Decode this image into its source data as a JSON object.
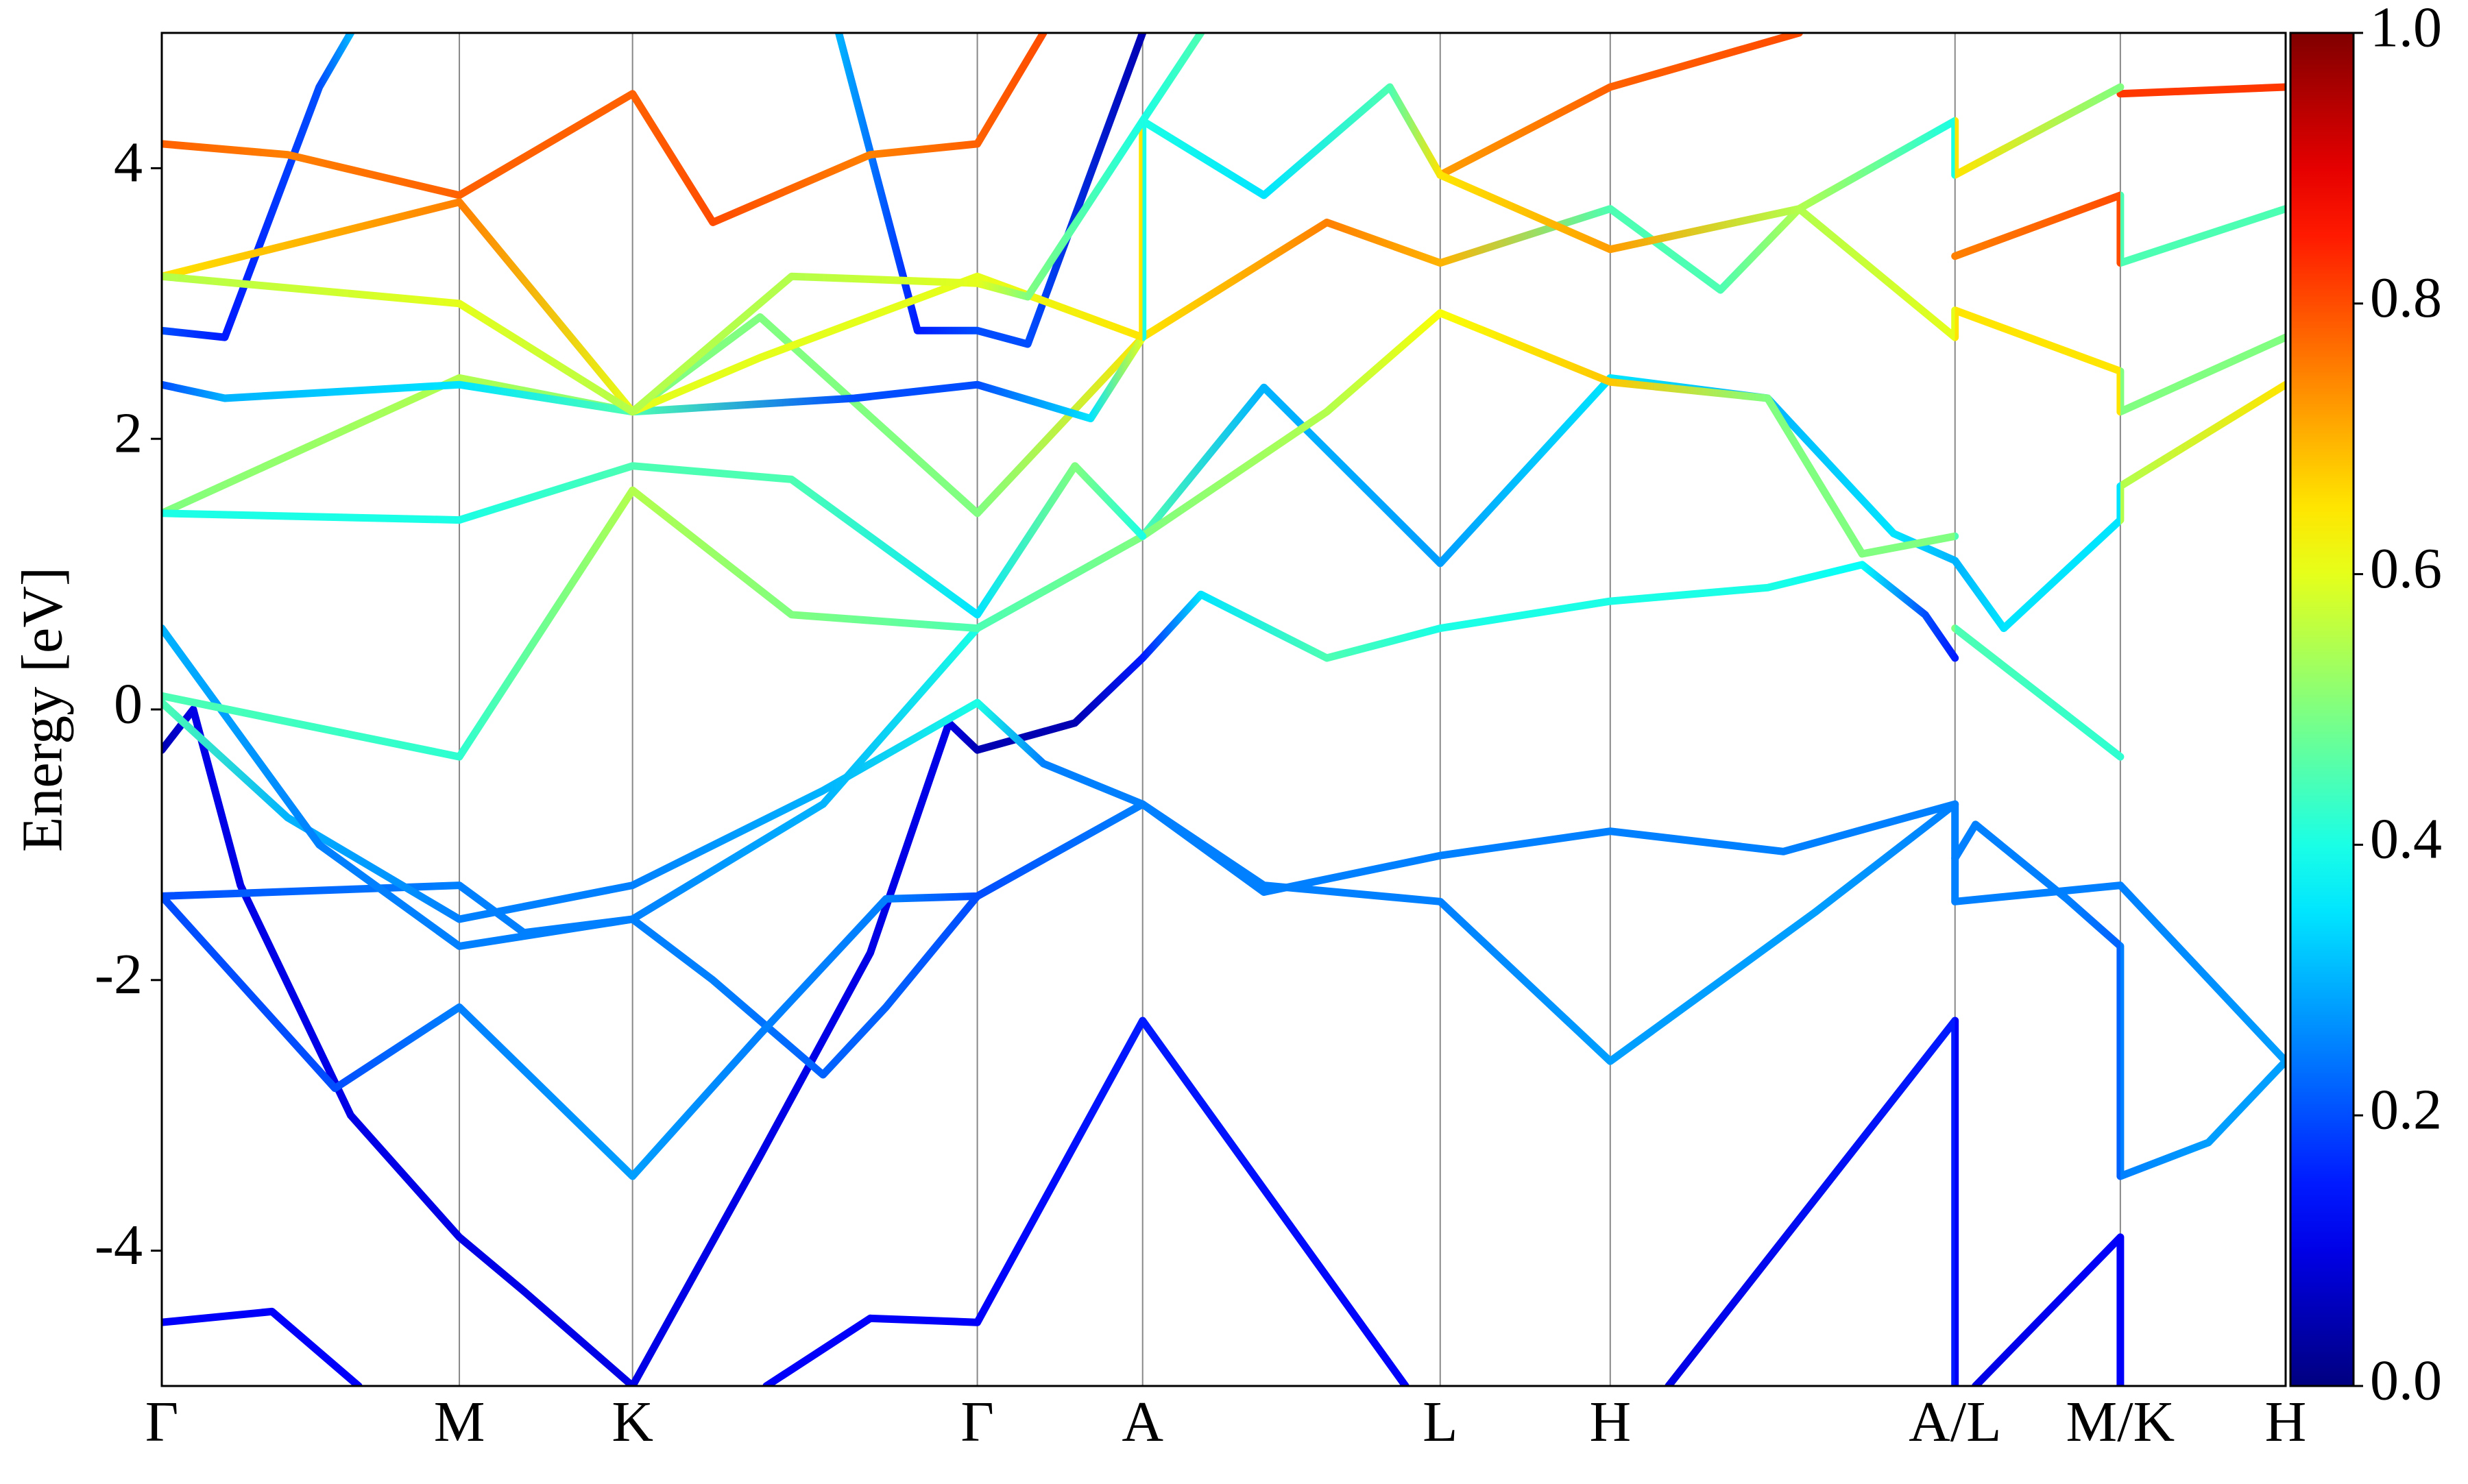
{
  "chart_data": {
    "type": "band",
    "y_label": "Energy [eV]",
    "xlim": [
      0,
      13.49
    ],
    "ylim": [
      -5,
      5
    ],
    "xticks": [
      {
        "value": 0,
        "label": "Γ"
      },
      {
        "value": 1.89,
        "label": "M"
      },
      {
        "value": 2.99,
        "label": "K"
      },
      {
        "value": 5.18,
        "label": "Γ"
      },
      {
        "value": 6.23,
        "label": "A"
      },
      {
        "value": 8.12,
        "label": "L"
      },
      {
        "value": 9.2,
        "label": "H"
      },
      {
        "value": 11.39,
        "label": "A/L"
      },
      {
        "value": 12.44,
        "label": "M/K"
      },
      {
        "value": 13.49,
        "label": "H"
      }
    ],
    "yticks": [
      -4,
      -2,
      0,
      2,
      4
    ],
    "colorbar": {
      "cmap": "jet",
      "lim": [
        0,
        1
      ],
      "ticks": [
        {
          "value": 0,
          "label": "0.0"
        },
        0.2,
        0.4,
        0.6,
        0.8,
        {
          "value": 1,
          "label": "1.0"
        }
      ]
    },
    "series": [
      {
        "x": [
          0,
          0.7,
          1.25,
          null,
          3.84,
          4.5,
          5.18,
          6.23,
          7.9,
          null,
          9.57,
          11.39,
          11.39,
          null,
          11.52,
          12.44,
          12.44
        ],
        "values": [
          -4.53,
          -4.45,
          -5,
          null,
          -5,
          -4.5,
          -4.53,
          -2.3,
          -5,
          null,
          -5,
          -2.3,
          -5,
          null,
          -5,
          -3.9,
          -5
        ],
        "weights": [
          0.12,
          0.12,
          0.12,
          null,
          0.12,
          0.12,
          0.12,
          0.15,
          0.12,
          null,
          0.1,
          0.15,
          0.12,
          null,
          0.1,
          0.12,
          0.12
        ]
      },
      {
        "x": [
          0,
          0.2,
          0.5,
          1.2,
          1.89,
          2.3,
          2.99,
          3.8,
          4.5,
          5.0,
          5.18,
          5.8,
          6.23,
          6.6,
          7.4,
          8.12,
          9.2,
          10.2,
          10.8,
          11.2,
          11.39
        ],
        "values": [
          -0.3,
          0,
          -1.3,
          -3,
          -3.9,
          -4.3,
          -5,
          -3.3,
          -1.8,
          -0.1,
          -0.3,
          -0.1,
          0.38,
          0.85,
          0.38,
          0.6,
          0.8,
          0.9,
          1.07,
          0.7,
          0.38
        ],
        "weights": [
          0.05,
          0.1,
          0.1,
          0.1,
          0.1,
          0.1,
          0.1,
          0.1,
          0.1,
          0.1,
          0.05,
          0.05,
          0.15,
          0.35,
          0.45,
          0.4,
          0.4,
          0.4,
          0.38,
          0.2,
          0.15
        ]
      },
      {
        "x": [
          0,
          1.89,
          2.3,
          2.99,
          3.5,
          4.2,
          4.6,
          5.18,
          6.23,
          7,
          8.12,
          9.2,
          10.5,
          11.39,
          11.39,
          12.44,
          13.49
        ],
        "values": [
          -1.38,
          -1.3,
          -1.65,
          -1.55,
          -2,
          -2.7,
          -2.2,
          -1.38,
          -0.7,
          -1.3,
          -1.42,
          -2.6,
          -1.5,
          -0.7,
          -1.42,
          -1.3,
          -2.6
        ],
        "weights": [
          0.2,
          0.25,
          0.25,
          0.25,
          0.25,
          0.22,
          0.22,
          0.2,
          0.25,
          0.25,
          0.25,
          0.28,
          0.28,
          0.25,
          0.25,
          0.25,
          0.28
        ]
      },
      {
        "x": [
          0,
          1.1,
          1.89,
          2.99,
          3.8,
          4.6,
          5.18,
          6.23,
          7,
          8.12,
          9.2,
          10.3,
          11.39,
          null,
          11.39,
          11.52,
          12.1,
          12.44,
          12.44,
          13,
          13.49
        ],
        "values": [
          -1.38,
          -2.8,
          -2.2,
          -3.45,
          -2.4,
          -1.4,
          -1.38,
          -0.7,
          -1.35,
          -1.08,
          -0.9,
          -1.05,
          -0.7,
          null,
          -1.1,
          -0.85,
          -1.4,
          -1.75,
          -3.45,
          -3.2,
          -2.6
        ],
        "weights": [
          0.2,
          0.2,
          0.25,
          0.28,
          0.25,
          0.25,
          0.2,
          0.25,
          0.25,
          0.25,
          0.25,
          0.25,
          0.25,
          null,
          0.25,
          0.25,
          0.25,
          0.22,
          0.25,
          0.28,
          0.28
        ]
      },
      {
        "x": [
          0,
          0.8,
          1.89,
          2.99,
          4.2,
          5.18,
          5.6,
          6.23
        ],
        "values": [
          0.05,
          -0.8,
          -1.55,
          -1.3,
          -0.6,
          0.05,
          -0.4,
          -0.7
        ],
        "weights": [
          0.45,
          0.3,
          0.25,
          0.25,
          0.3,
          0.4,
          0.25,
          0.25
        ]
      },
      {
        "x": [
          0,
          1,
          1.89,
          2.99,
          4.2,
          5.18,
          6.23,
          7,
          8.12,
          9.2,
          10.2,
          11,
          11.39,
          11.39,
          11.7,
          12.44,
          12.44,
          13.49
        ],
        "values": [
          0.6,
          -1,
          -1.75,
          -1.55,
          -0.7,
          0.6,
          1.28,
          2.38,
          1.08,
          2.45,
          2.3,
          1.3,
          1.1,
          1.1,
          0.6,
          1.4,
          1.65,
          2.4
        ],
        "weights": [
          0.3,
          0.25,
          0.25,
          0.25,
          0.3,
          0.4,
          0.45,
          0.3,
          0.28,
          0.35,
          0.3,
          0.35,
          0.3,
          0.3,
          0.35,
          0.35,
          0.55,
          0.65
        ]
      },
      {
        "x": [
          0,
          1.89,
          2.99,
          4,
          5.18,
          6.23,
          7.4,
          8.12,
          9.2,
          10.2,
          10.8,
          11.39,
          null,
          11.39,
          12.44
        ],
        "values": [
          0.1,
          -0.35,
          1.62,
          0.7,
          0.6,
          1.28,
          2.2,
          2.93,
          2.42,
          2.3,
          1.15,
          1.28,
          null,
          0.6,
          -0.35
        ],
        "weights": [
          0.45,
          0.42,
          0.55,
          0.5,
          0.45,
          0.5,
          0.55,
          0.62,
          0.68,
          0.5,
          0.5,
          0.5,
          null,
          0.45,
          0.42
        ]
      },
      {
        "x": [
          0,
          1.89,
          2.99,
          3.8,
          5.18,
          6.23,
          7.4,
          8.12,
          9.2,
          9.9,
          10.4,
          11.39,
          11.39,
          12.44,
          12.44,
          13.49
        ],
        "values": [
          1.45,
          2.45,
          2.2,
          2.9,
          1.45,
          2.75,
          3.6,
          3.3,
          3.7,
          3.1,
          3.7,
          2.75,
          2.95,
          2.5,
          2.2,
          2.75
        ],
        "weights": [
          0.5,
          0.55,
          0.5,
          0.5,
          0.5,
          0.65,
          0.75,
          0.7,
          0.45,
          0.45,
          0.55,
          0.6,
          0.65,
          0.65,
          0.5,
          0.5
        ]
      },
      {
        "x": [
          0,
          1.89,
          2.99,
          4,
          5.18,
          5.8,
          6.23
        ],
        "values": [
          1.45,
          1.4,
          1.8,
          1.7,
          0.7,
          1.8,
          1.28
        ],
        "weights": [
          0.4,
          0.4,
          0.45,
          0.45,
          0.35,
          0.5,
          0.4
        ]
      },
      {
        "x": [
          0,
          0.4,
          1.89,
          2.99,
          4.4,
          5.18,
          5.9,
          6.23
        ],
        "values": [
          2.4,
          2.3,
          2.4,
          2.2,
          2.3,
          2.4,
          2.15,
          2.75
        ],
        "weights": [
          0.2,
          0.3,
          0.35,
          0.45,
          0.2,
          0.2,
          0.35,
          0.6
        ]
      },
      {
        "x": [
          0,
          0.4,
          1,
          1.2,
          null,
          4.3,
          4.8,
          5.18,
          5.5,
          6.23
        ],
        "values": [
          2.8,
          2.75,
          4.6,
          5,
          null,
          5,
          2.8,
          2.8,
          2.7,
          5
        ],
        "weights": [
          0.2,
          0.15,
          0.2,
          0.3,
          null,
          0.3,
          0.15,
          0.2,
          0.2,
          0.05
        ]
      },
      {
        "x": [
          0,
          0.8,
          1.89,
          2.99,
          3.5,
          4.5,
          5.18,
          5.6,
          null,
          8.12,
          9.2,
          10.4,
          null,
          12.44,
          13.49
        ],
        "values": [
          4.18,
          4.1,
          3.8,
          4.55,
          3.6,
          4.1,
          4.18,
          5,
          null,
          3.95,
          4.6,
          5,
          null,
          4.55,
          4.6
        ],
        "weights": [
          0.78,
          0.75,
          0.78,
          0.78,
          0.8,
          0.75,
          0.78,
          0.8,
          null,
          0.72,
          0.78,
          0.8,
          null,
          0.82,
          0.82
        ]
      },
      {
        "x": [
          0,
          1.89,
          2.99,
          3.8,
          5.18,
          6.23,
          6.23,
          7,
          7.8,
          8.12,
          9.2,
          10.4,
          11.39,
          11.39,
          12.44
        ],
        "values": [
          3.2,
          3.75,
          2.2,
          2.6,
          3.2,
          2.75,
          4.35,
          3.8,
          4.6,
          3.95,
          3.4,
          3.7,
          4.35,
          3.95,
          4.6
        ],
        "weights": [
          0.65,
          0.75,
          0.6,
          0.6,
          0.6,
          0.65,
          0.4,
          0.35,
          0.45,
          0.65,
          0.72,
          0.55,
          0.4,
          0.65,
          0.5
        ]
      },
      {
        "x": [
          0,
          1.89,
          2.99,
          4,
          5.18,
          5.5,
          6.23,
          6.6,
          null,
          11.39,
          12.44,
          12.44,
          13.49
        ],
        "values": [
          3.2,
          3,
          2.2,
          3.2,
          3.15,
          3.05,
          4.35,
          5,
          null,
          3.35,
          3.8,
          3.3,
          3.7
        ],
        "weights": [
          0.55,
          0.6,
          0.55,
          0.55,
          0.6,
          0.5,
          0.4,
          0.45,
          null,
          0.75,
          0.8,
          0.45,
          0.45
        ]
      }
    ]
  }
}
